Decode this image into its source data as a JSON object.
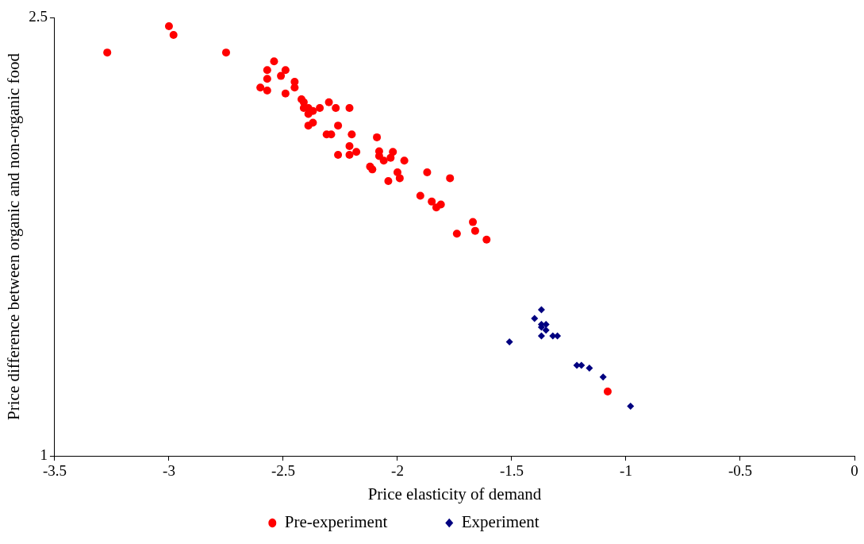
{
  "chart_data": {
    "type": "scatter",
    "xlabel": "Price elasticity of demand",
    "ylabel": "Price difference between organic and non-organic food",
    "xlim": [
      -3.5,
      0
    ],
    "xticks": [
      -3.5,
      -3,
      -2.5,
      -2,
      -1.5,
      -1,
      -0.5,
      0
    ],
    "ylim": [
      1,
      2.5
    ],
    "yticks": [
      1,
      2.5
    ],
    "grid": false,
    "legend": "bottom",
    "series": [
      {
        "name": "Pre-experiment",
        "color": "#ff0000",
        "marker": "circle",
        "x": [
          -3.27,
          -3.0,
          -2.98,
          -2.75,
          -2.54,
          -2.57,
          -2.49,
          -2.57,
          -2.51,
          -2.45,
          -2.6,
          -2.57,
          -2.45,
          -2.49,
          -2.42,
          -2.41,
          -2.41,
          -2.39,
          -2.39,
          -2.37,
          -2.34,
          -2.3,
          -2.27,
          -2.21,
          -2.37,
          -2.39,
          -2.26,
          -2.31,
          -2.29,
          -2.2,
          -2.09,
          -2.21,
          -2.18,
          -2.26,
          -2.21,
          -2.08,
          -2.02,
          -2.08,
          -2.06,
          -2.03,
          -1.97,
          -2.12,
          -2.11,
          -2.0,
          -1.99,
          -2.04,
          -1.87,
          -1.77,
          -1.9,
          -1.85,
          -1.81,
          -1.83,
          -1.67,
          -1.74,
          -1.66,
          -1.61,
          -1.08
        ],
        "values": [
          2.38,
          2.47,
          2.44,
          2.38,
          2.35,
          2.32,
          2.32,
          2.29,
          2.3,
          2.28,
          2.26,
          2.25,
          2.26,
          2.24,
          2.22,
          2.21,
          2.19,
          2.19,
          2.17,
          2.18,
          2.19,
          2.21,
          2.19,
          2.19,
          2.14,
          2.13,
          2.13,
          2.1,
          2.1,
          2.1,
          2.09,
          2.06,
          2.04,
          2.03,
          2.03,
          2.042,
          2.04,
          2.026,
          2.01,
          2.02,
          2.01,
          1.99,
          1.98,
          1.97,
          1.95,
          1.94,
          1.97,
          1.95,
          1.89,
          1.87,
          1.86,
          1.85,
          1.8,
          1.76,
          1.77,
          1.74,
          1.22
        ]
      },
      {
        "name": "Experiment",
        "color": "#000080",
        "marker": "diamond",
        "x": [
          -1.37,
          -1.4,
          -1.37,
          -1.35,
          -1.37,
          -1.35,
          -1.37,
          -1.32,
          -1.3,
          -1.51,
          -1.215,
          -1.195,
          -1.16,
          -1.1,
          -0.98
        ],
        "values": [
          1.5,
          1.47,
          1.45,
          1.45,
          1.44,
          1.43,
          1.41,
          1.41,
          1.41,
          1.39,
          1.31,
          1.31,
          1.3,
          1.27,
          1.17
        ]
      }
    ]
  }
}
